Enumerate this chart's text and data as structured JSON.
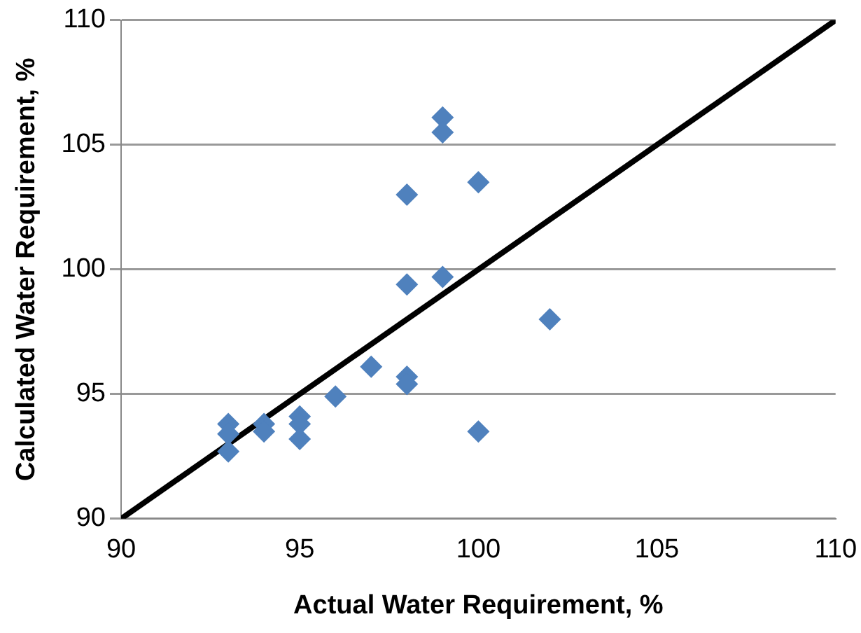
{
  "chart_data": {
    "type": "scatter",
    "xlabel": "Actual Water Requirement, %",
    "ylabel": "Calculated Water Requirement, %",
    "xlim": [
      90,
      110
    ],
    "xticks": [
      90,
      95,
      100,
      105,
      110
    ],
    "ylim": [
      90,
      110
    ],
    "yticks": [
      90,
      95,
      100,
      105,
      110
    ],
    "grid": "y",
    "legend": false,
    "series": [
      {
        "marker": "diamond",
        "color": "#4f81bd",
        "x": [
          93,
          93,
          93,
          94,
          94,
          95,
          95,
          95,
          96,
          97,
          98,
          98,
          98,
          98,
          99,
          99,
          99,
          100,
          100,
          102
        ],
        "values": [
          93.8,
          93.4,
          92.7,
          93.8,
          93.5,
          94.1,
          93.8,
          93.2,
          94.9,
          96.1,
          95.7,
          95.4,
          99.4,
          103.0,
          106.1,
          105.5,
          99.7,
          103.5,
          93.5,
          98.0
        ]
      },
      {
        "type": "line",
        "marker": "none",
        "color": "#000000",
        "x": [
          90,
          110
        ],
        "values": [
          90,
          110
        ]
      }
    ]
  }
}
